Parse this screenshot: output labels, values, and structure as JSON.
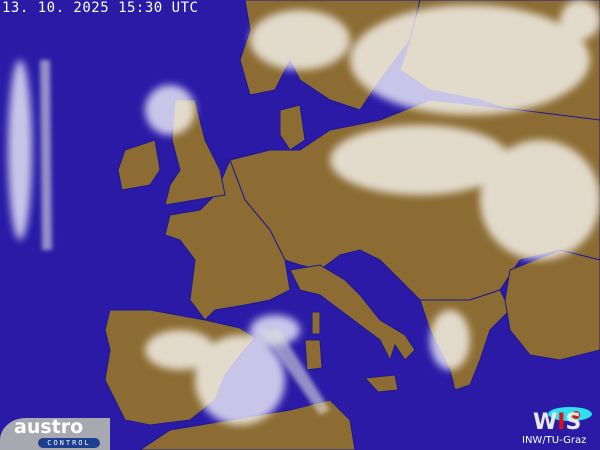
{
  "timestamp": "13. 10. 2025 15:30  UTC",
  "colors": {
    "sea": "#2a1aa6",
    "land": "#8c6c32",
    "cloud": "#ffffff",
    "border": "#1a1a90"
  },
  "logos": {
    "austro_control": {
      "word": "austro",
      "sub": "CONTROL"
    },
    "wis": {
      "text_w": "W",
      "text_i": "I",
      "text_s": "S",
      "institution": "INW/TU-Graz"
    }
  }
}
